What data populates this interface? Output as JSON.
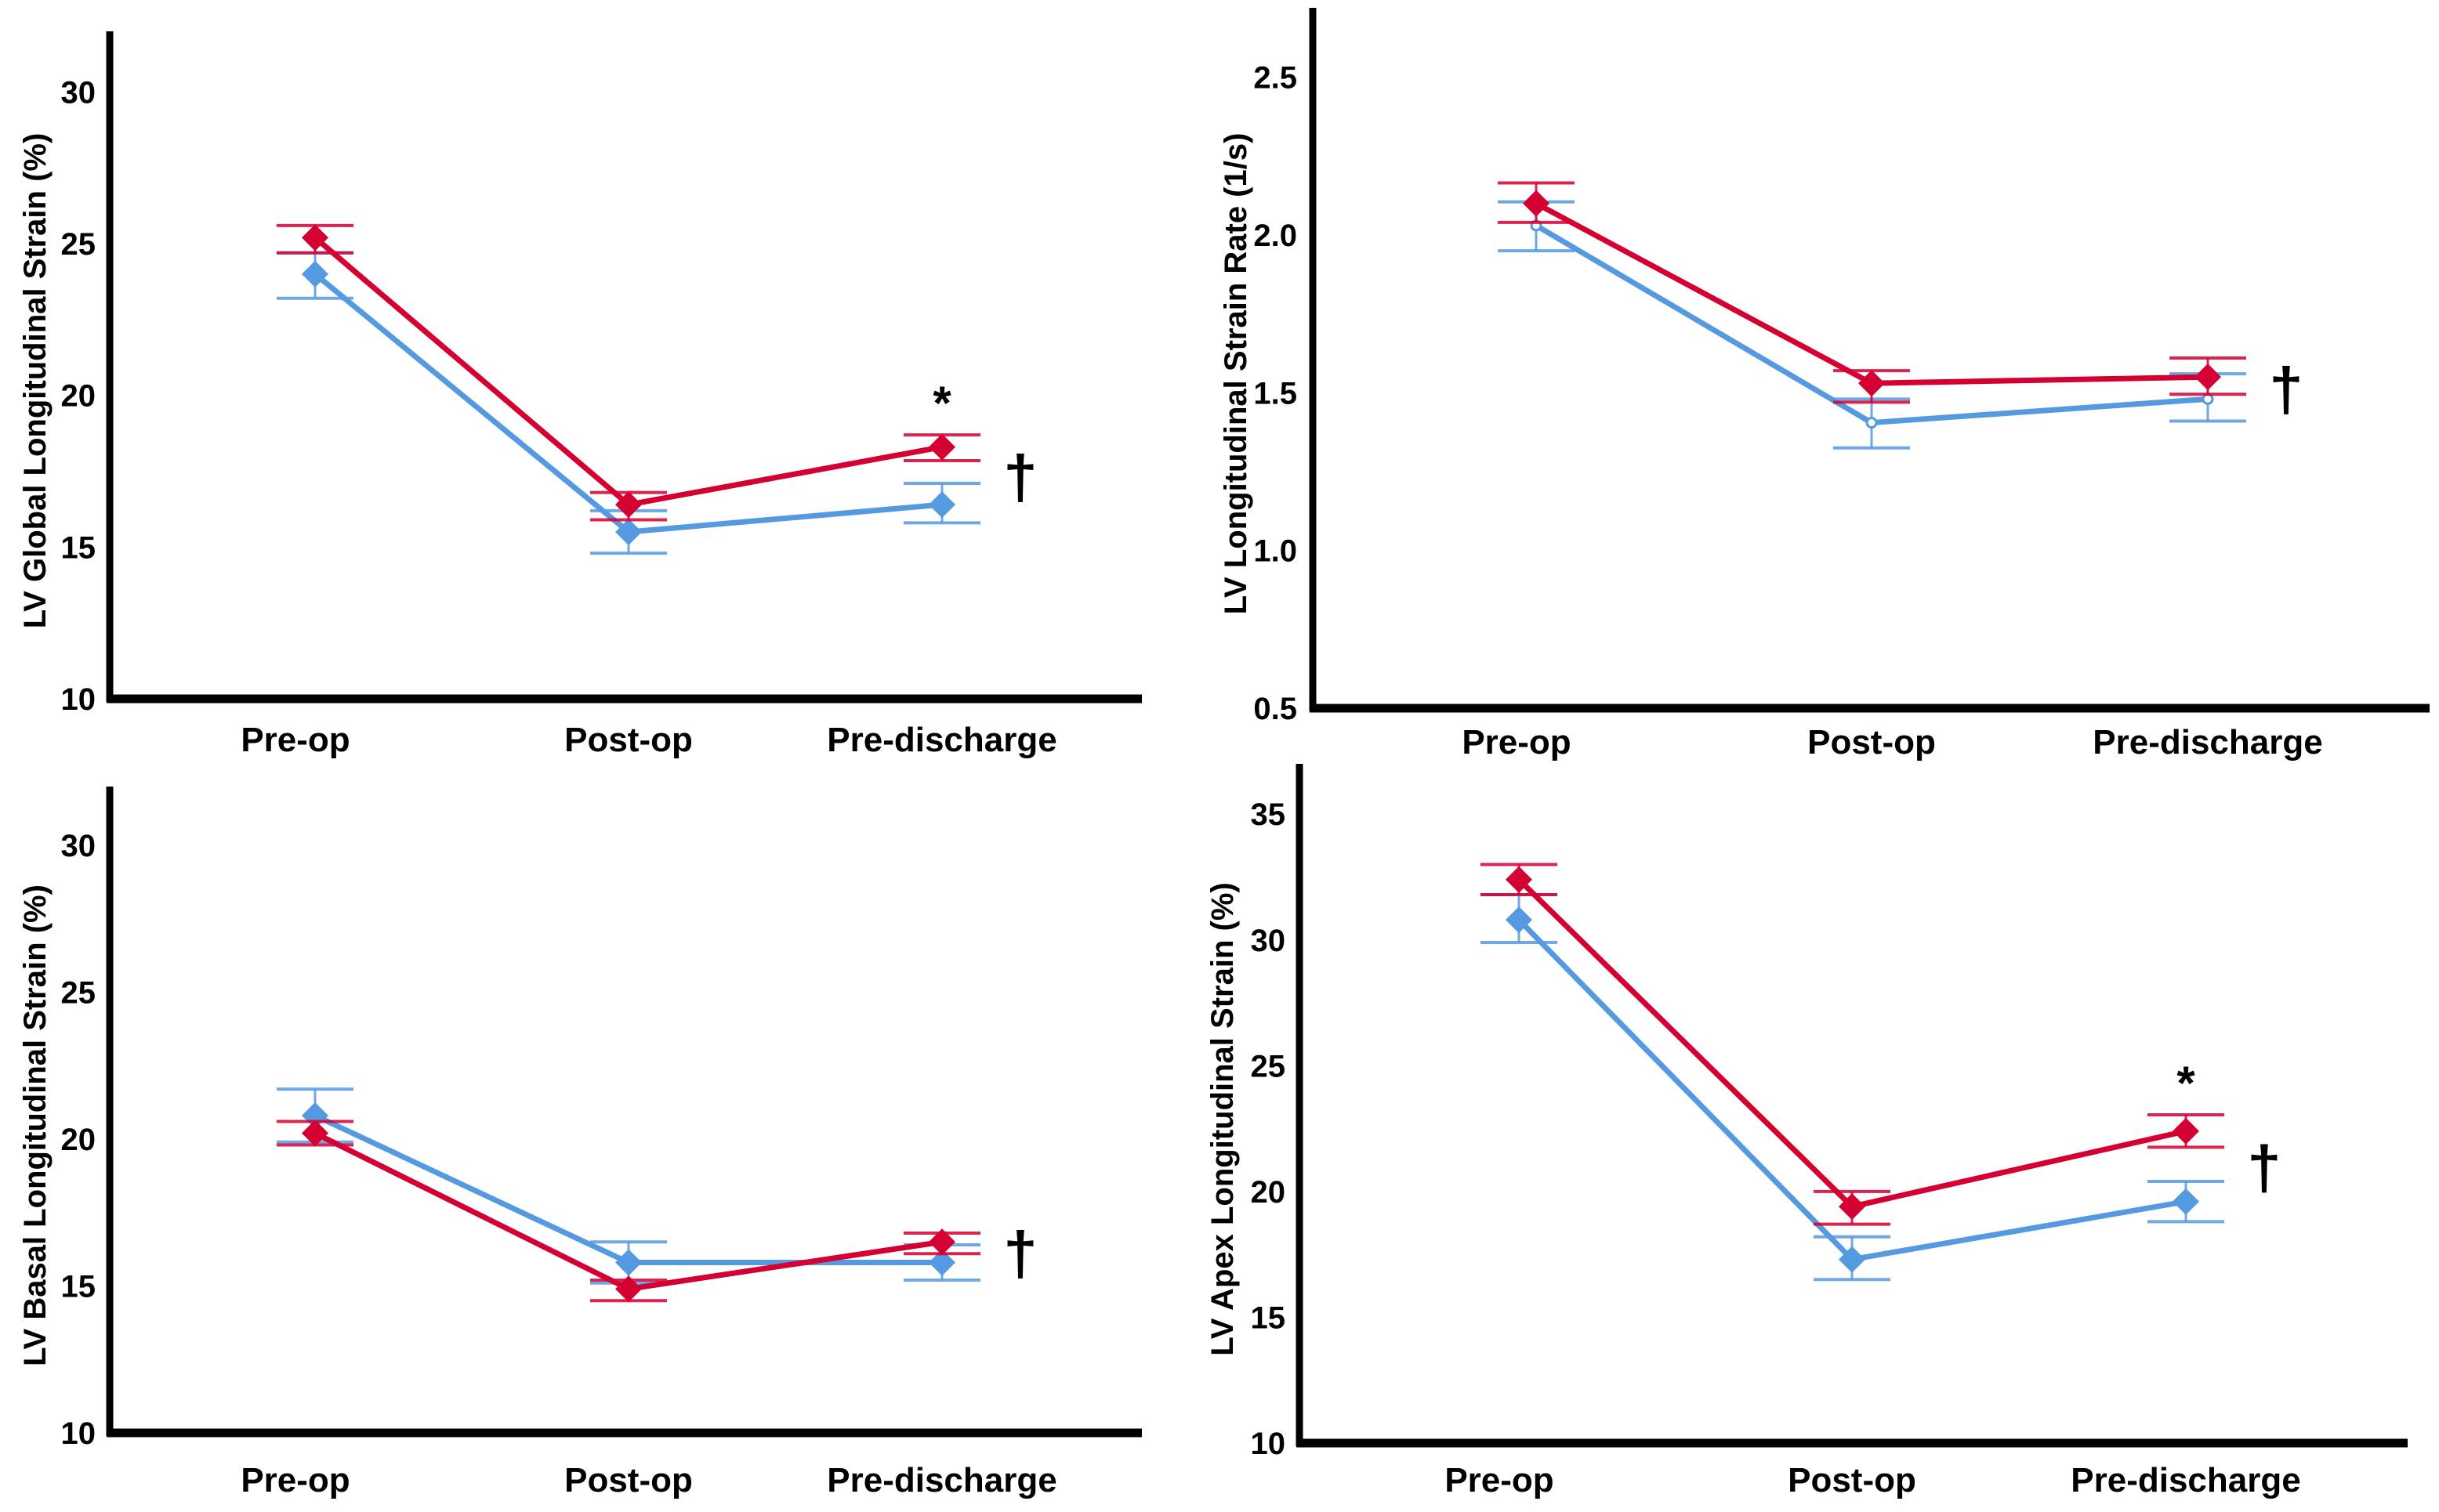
{
  "figure": {
    "group_colors": {
      "red_group": "#D50032",
      "blue_group": "#5599E1"
    }
  },
  "chart_data": [
    {
      "id": "global",
      "type": "line",
      "title": "",
      "xlabel": "",
      "ylabel": "LV Global Longitudinal Strain (%)",
      "categories": [
        "Pre-op",
        "Post-op",
        "Pre-discharge"
      ],
      "yticks": [
        "10",
        "15",
        "20",
        "25",
        "30"
      ],
      "ytick_values": [
        10,
        15,
        20,
        25,
        30
      ],
      "ylim": [
        10,
        32
      ],
      "grid": false,
      "legend": "none",
      "error_bars": true,
      "series": [
        {
          "name": "Red group",
          "color": "#D50032",
          "marker": "diamond",
          "values": [
            25.2,
            16.4,
            18.3
          ],
          "lower": [
            24.7,
            15.9,
            17.85
          ],
          "upper": [
            25.6,
            16.8,
            18.7
          ]
        },
        {
          "name": "Blue group",
          "color": "#5599E1",
          "marker": "diamond",
          "values": [
            24.0,
            15.5,
            16.4
          ],
          "lower": [
            23.2,
            14.8,
            15.8
          ],
          "upper": [
            24.7,
            16.2,
            17.1
          ]
        }
      ],
      "annotations": [
        {
          "text": "*",
          "category": "Pre-discharge",
          "position": "above-red"
        },
        {
          "text": "†",
          "category": "Pre-discharge",
          "position": "right"
        }
      ]
    },
    {
      "id": "strain-rate",
      "type": "line",
      "title": "",
      "xlabel": "",
      "ylabel": "LV Longitudinal Strain Rate (1/s)",
      "categories": [
        "Pre-op",
        "Post-op",
        "Pre-discharge"
      ],
      "yticks": [
        "0.5",
        "1.0",
        "1.5",
        "2.0",
        "2.5"
      ],
      "ytick_values": [
        0.5,
        1.0,
        1.5,
        2.0,
        2.5
      ],
      "ylim": [
        0.5,
        2.72
      ],
      "grid": false,
      "legend": "none",
      "error_bars": true,
      "series": [
        {
          "name": "Red group",
          "color": "#D50032",
          "marker": "diamond",
          "values": [
            2.1,
            1.53,
            1.55
          ],
          "lower": [
            2.04,
            1.47,
            1.495
          ],
          "upper": [
            2.165,
            1.57,
            1.61
          ]
        },
        {
          "name": "Blue group",
          "color": "#5599E1",
          "marker": "circle-open",
          "values": [
            2.03,
            1.405,
            1.48
          ],
          "lower": [
            1.95,
            1.325,
            1.41
          ],
          "upper": [
            2.105,
            1.48,
            1.56
          ]
        }
      ],
      "annotations": [
        {
          "text": "†",
          "category": "Pre-discharge",
          "position": "right"
        }
      ]
    },
    {
      "id": "basal",
      "type": "line",
      "title": "",
      "xlabel": "",
      "ylabel": "LV Basal Longitudinal Strain (%)",
      "categories": [
        "Pre-op",
        "Post-op",
        "Pre-discharge"
      ],
      "yticks": [
        "10",
        "15",
        "20",
        "25",
        "30"
      ],
      "ytick_values": [
        10,
        15,
        20,
        25,
        30
      ],
      "ylim": [
        10,
        32
      ],
      "grid": false,
      "legend": "none",
      "error_bars": true,
      "series": [
        {
          "name": "Red group",
          "color": "#D50032",
          "marker": "diamond",
          "values": [
            20.2,
            14.9,
            16.5
          ],
          "lower": [
            19.8,
            14.5,
            16.1
          ],
          "upper": [
            20.6,
            15.2,
            16.8
          ]
        },
        {
          "name": "Blue group",
          "color": "#5599E1",
          "marker": "diamond",
          "values": [
            20.8,
            15.8,
            15.8
          ],
          "lower": [
            19.9,
            15.1,
            15.2
          ],
          "upper": [
            21.7,
            16.5,
            16.4
          ]
        }
      ],
      "annotations": [
        {
          "text": "†",
          "category": "Pre-discharge",
          "position": "right"
        }
      ]
    },
    {
      "id": "apex",
      "type": "line",
      "title": "",
      "xlabel": "",
      "ylabel": "LV Apex Longitudinal Strain (%)",
      "categories": [
        "Pre-op",
        "Post-op",
        "Pre-discharge"
      ],
      "yticks": [
        "10",
        "15",
        "20",
        "25",
        "30",
        "35"
      ],
      "ytick_values": [
        10,
        15,
        20,
        25,
        30,
        35
      ],
      "ylim": [
        10,
        37
      ],
      "grid": false,
      "legend": "none",
      "error_bars": true,
      "series": [
        {
          "name": "Red group",
          "color": "#D50032",
          "marker": "diamond",
          "values": [
            32.4,
            19.4,
            22.4
          ],
          "lower": [
            31.8,
            18.7,
            21.76
          ],
          "upper": [
            33.0,
            20.0,
            23.05
          ]
        },
        {
          "name": "Blue group",
          "color": "#5599E1",
          "marker": "diamond",
          "values": [
            30.8,
            17.3,
            19.6
          ],
          "lower": [
            29.9,
            16.5,
            18.8
          ],
          "upper": [
            31.8,
            18.2,
            20.4
          ]
        }
      ],
      "annotations": [
        {
          "text": "*",
          "category": "Pre-discharge",
          "position": "above-red"
        },
        {
          "text": "†",
          "category": "Pre-discharge",
          "position": "right"
        }
      ]
    }
  ]
}
